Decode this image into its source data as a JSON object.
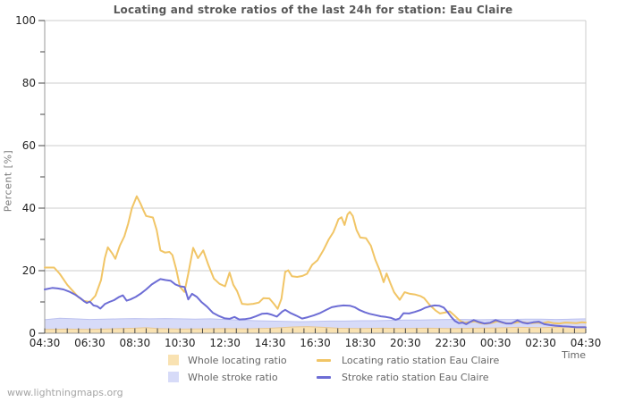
{
  "title": "Locating and stroke ratios of the last 24h for station: Eau Claire",
  "watermark": "www.lightningmaps.org",
  "axes": {
    "y_label": "Percent  [%]",
    "x_label": "Time"
  },
  "colors": {
    "grid": "#cccccc",
    "axis": "#999999",
    "tick": "#444444",
    "tick_label": "#222222",
    "title": "#595959"
  },
  "legend": [
    {
      "label": "Whole locating ratio",
      "type": "area",
      "swatch": "#F9E2B2"
    },
    {
      "label": "Locating ratio station Eau Claire",
      "type": "line",
      "swatch": "#F1C566"
    },
    {
      "label": "Whole stroke ratio",
      "type": "area",
      "swatch": "#D7DBF8"
    },
    {
      "label": "Stroke ratio station Eau Claire",
      "type": "line",
      "swatch": "#6D6DD5"
    }
  ],
  "chart_data": {
    "type": "line",
    "title": "Locating and stroke ratios of the last 24h for station: Eau Claire",
    "xlabel": "Time",
    "ylabel": "Percent [%]",
    "ylim": [
      0,
      100
    ],
    "grid": "horizontal-major",
    "legend_position": "bottom-center",
    "x_unit": "minutes after 04:30, 24h span",
    "x_range_minutes": [
      0,
      1440
    ],
    "x_tick_step_minutes": 120,
    "x_minor_tick_step_minutes": 30,
    "x_tick_labels": [
      "04:30",
      "06:30",
      "08:30",
      "10:30",
      "12:30",
      "14:30",
      "16:30",
      "18:30",
      "20:30",
      "22:30",
      "00:30",
      "02:30",
      "04:30"
    ],
    "y_major_ticks": [
      0,
      20,
      40,
      60,
      80,
      100
    ],
    "y_minor_ticks": [
      10,
      30,
      50,
      70,
      90
    ],
    "series": [
      {
        "id": "whole-stroke-ratio",
        "name": "Whole stroke ratio",
        "type": "area",
        "fill": "#D7DBF8",
        "edge": "#BCC1EF",
        "points": [
          [
            0,
            4.3
          ],
          [
            40,
            4.8
          ],
          [
            80,
            4.6
          ],
          [
            120,
            4.4
          ],
          [
            160,
            4.5
          ],
          [
            200,
            4.6
          ],
          [
            240,
            4.7
          ],
          [
            280,
            4.6
          ],
          [
            320,
            4.7
          ],
          [
            360,
            4.6
          ],
          [
            400,
            4.5
          ],
          [
            440,
            4.6
          ],
          [
            480,
            4.4
          ],
          [
            520,
            4.2
          ],
          [
            560,
            4.0
          ],
          [
            600,
            3.9
          ],
          [
            640,
            3.8
          ],
          [
            680,
            3.7
          ],
          [
            720,
            3.8
          ],
          [
            760,
            3.9
          ],
          [
            800,
            3.9
          ],
          [
            840,
            4.0
          ],
          [
            880,
            4.0
          ],
          [
            920,
            4.1
          ],
          [
            960,
            4.2
          ],
          [
            1000,
            4.2
          ],
          [
            1040,
            4.3
          ],
          [
            1080,
            4.4
          ],
          [
            1120,
            4.4
          ],
          [
            1160,
            4.3
          ],
          [
            1200,
            4.4
          ],
          [
            1240,
            4.4
          ],
          [
            1280,
            4.5
          ],
          [
            1320,
            4.5
          ],
          [
            1360,
            4.4
          ],
          [
            1400,
            4.5
          ],
          [
            1440,
            4.6
          ]
        ]
      },
      {
        "id": "whole-locating-ratio",
        "name": "Whole locating ratio",
        "type": "area",
        "fill": "#F9E2B2",
        "edge": "#E6C795",
        "points": [
          [
            0,
            1.2
          ],
          [
            60,
            1.3
          ],
          [
            120,
            1.2
          ],
          [
            180,
            1.4
          ],
          [
            240,
            1.6
          ],
          [
            270,
            1.8
          ],
          [
            300,
            1.5
          ],
          [
            360,
            1.3
          ],
          [
            420,
            1.4
          ],
          [
            480,
            1.5
          ],
          [
            540,
            1.4
          ],
          [
            600,
            1.6
          ],
          [
            630,
            1.8
          ],
          [
            660,
            2.0
          ],
          [
            700,
            2.1
          ],
          [
            740,
            1.9
          ],
          [
            780,
            1.6
          ],
          [
            840,
            1.5
          ],
          [
            900,
            1.6
          ],
          [
            960,
            1.5
          ],
          [
            1020,
            1.6
          ],
          [
            1080,
            1.5
          ],
          [
            1140,
            1.6
          ],
          [
            1200,
            1.7
          ],
          [
            1260,
            1.9
          ],
          [
            1320,
            1.8
          ],
          [
            1380,
            2.0
          ],
          [
            1440,
            2.1
          ]
        ]
      },
      {
        "id": "locating-ratio-station",
        "name": "Locating ratio station Eau Claire",
        "type": "line",
        "color": "#F1C566",
        "points": [
          [
            0,
            21
          ],
          [
            25,
            21
          ],
          [
            40,
            19
          ],
          [
            60,
            15.5
          ],
          [
            75,
            13.5
          ],
          [
            90,
            11.5
          ],
          [
            105,
            10.3
          ],
          [
            120,
            10
          ],
          [
            135,
            12
          ],
          [
            150,
            17
          ],
          [
            160,
            24
          ],
          [
            168,
            27.5
          ],
          [
            180,
            25.5
          ],
          [
            188,
            23.8
          ],
          [
            200,
            28
          ],
          [
            212,
            31
          ],
          [
            222,
            35
          ],
          [
            232,
            40
          ],
          [
            245,
            43.8
          ],
          [
            255,
            41.5
          ],
          [
            262,
            39.5
          ],
          [
            270,
            37.5
          ],
          [
            288,
            37
          ],
          [
            298,
            33
          ],
          [
            308,
            26.5
          ],
          [
            320,
            25.8
          ],
          [
            332,
            26
          ],
          [
            340,
            25
          ],
          [
            350,
            20.5
          ],
          [
            360,
            14.8
          ],
          [
            372,
            13.2
          ],
          [
            382,
            19
          ],
          [
            395,
            27.3
          ],
          [
            408,
            24
          ],
          [
            422,
            26.5
          ],
          [
            435,
            22
          ],
          [
            450,
            17.5
          ],
          [
            465,
            15.8
          ],
          [
            480,
            15
          ],
          [
            492,
            19.4
          ],
          [
            502,
            15.5
          ],
          [
            512,
            13.5
          ],
          [
            525,
            9.4
          ],
          [
            540,
            9.2
          ],
          [
            555,
            9.4
          ],
          [
            570,
            9.8
          ],
          [
            582,
            11.2
          ],
          [
            598,
            11.1
          ],
          [
            610,
            9.4
          ],
          [
            620,
            7.8
          ],
          [
            630,
            11
          ],
          [
            640,
            19.6
          ],
          [
            648,
            20.1
          ],
          [
            658,
            18.2
          ],
          [
            672,
            18
          ],
          [
            686,
            18.3
          ],
          [
            698,
            19
          ],
          [
            712,
            21.9
          ],
          [
            726,
            23.3
          ],
          [
            742,
            26.6
          ],
          [
            756,
            30
          ],
          [
            768,
            32.3
          ],
          [
            775,
            34.3
          ],
          [
            782,
            36.5
          ],
          [
            790,
            37.1
          ],
          [
            798,
            34.6
          ],
          [
            806,
            38
          ],
          [
            812,
            38.8
          ],
          [
            820,
            37.5
          ],
          [
            830,
            33
          ],
          [
            840,
            30.6
          ],
          [
            855,
            30.4
          ],
          [
            868,
            28
          ],
          [
            880,
            23.5
          ],
          [
            892,
            20
          ],
          [
            902,
            16.3
          ],
          [
            910,
            19.1
          ],
          [
            920,
            16
          ],
          [
            930,
            13.1
          ],
          [
            945,
            10.7
          ],
          [
            958,
            13.1
          ],
          [
            972,
            12.6
          ],
          [
            985,
            12.4
          ],
          [
            1000,
            11.9
          ],
          [
            1010,
            11.2
          ],
          [
            1025,
            9
          ],
          [
            1040,
            7.3
          ],
          [
            1052,
            6.3
          ],
          [
            1065,
            6.6
          ],
          [
            1078,
            7
          ],
          [
            1092,
            5.5
          ],
          [
            1105,
            4
          ],
          [
            1118,
            3.3
          ],
          [
            1132,
            3.6
          ],
          [
            1145,
            3.8
          ],
          [
            1160,
            3.2
          ],
          [
            1175,
            3.0
          ],
          [
            1190,
            3.3
          ],
          [
            1205,
            3.8
          ],
          [
            1220,
            3.3
          ],
          [
            1235,
            3.1
          ],
          [
            1250,
            3.3
          ],
          [
            1265,
            3.7
          ],
          [
            1280,
            3.3
          ],
          [
            1295,
            3.2
          ],
          [
            1310,
            3.4
          ],
          [
            1325,
            3.2
          ],
          [
            1340,
            3.6
          ],
          [
            1355,
            3.2
          ],
          [
            1370,
            3.1
          ],
          [
            1385,
            3.4
          ],
          [
            1400,
            3.3
          ],
          [
            1415,
            3.2
          ],
          [
            1430,
            3.5
          ],
          [
            1440,
            3.4
          ]
        ]
      },
      {
        "id": "stroke-ratio-station",
        "name": "Stroke ratio station Eau Claire",
        "type": "line",
        "color": "#6D6DD5",
        "points": [
          [
            0,
            14
          ],
          [
            20,
            14.5
          ],
          [
            35,
            14.3
          ],
          [
            50,
            14
          ],
          [
            65,
            13.3
          ],
          [
            80,
            12.4
          ],
          [
            95,
            11.2
          ],
          [
            105,
            10.2
          ],
          [
            112,
            9.7
          ],
          [
            120,
            10.1
          ],
          [
            130,
            8.9
          ],
          [
            140,
            8.6
          ],
          [
            148,
            7.9
          ],
          [
            160,
            9.3
          ],
          [
            172,
            10
          ],
          [
            185,
            10.6
          ],
          [
            198,
            11.6
          ],
          [
            208,
            12.1
          ],
          [
            218,
            10.4
          ],
          [
            228,
            10.8
          ],
          [
            242,
            11.6
          ],
          [
            255,
            12.6
          ],
          [
            270,
            14
          ],
          [
            285,
            15.6
          ],
          [
            298,
            16.6
          ],
          [
            308,
            17.3
          ],
          [
            322,
            17
          ],
          [
            335,
            16.8
          ],
          [
            348,
            15.6
          ],
          [
            360,
            15
          ],
          [
            372,
            14.8
          ],
          [
            382,
            10.8
          ],
          [
            392,
            12.6
          ],
          [
            405,
            11.6
          ],
          [
            418,
            9.9
          ],
          [
            432,
            8.5
          ],
          [
            448,
            6.5
          ],
          [
            462,
            5.6
          ],
          [
            478,
            4.8
          ],
          [
            492,
            4.6
          ],
          [
            505,
            5.2
          ],
          [
            518,
            4.4
          ],
          [
            532,
            4.5
          ],
          [
            548,
            4.8
          ],
          [
            562,
            5.4
          ],
          [
            578,
            6.2
          ],
          [
            592,
            6.3
          ],
          [
            605,
            5.9
          ],
          [
            618,
            5.3
          ],
          [
            632,
            6.9
          ],
          [
            640,
            7.5
          ],
          [
            655,
            6.4
          ],
          [
            670,
            5.6
          ],
          [
            685,
            4.7
          ],
          [
            700,
            5.1
          ],
          [
            716,
            5.7
          ],
          [
            732,
            6.4
          ],
          [
            748,
            7.4
          ],
          [
            764,
            8.3
          ],
          [
            780,
            8.7
          ],
          [
            795,
            8.9
          ],
          [
            812,
            8.8
          ],
          [
            825,
            8.3
          ],
          [
            838,
            7.4
          ],
          [
            852,
            6.7
          ],
          [
            865,
            6.2
          ],
          [
            880,
            5.8
          ],
          [
            895,
            5.4
          ],
          [
            908,
            5.2
          ],
          [
            922,
            4.9
          ],
          [
            934,
            4.3
          ],
          [
            944,
            4.7
          ],
          [
            955,
            6.4
          ],
          [
            970,
            6.3
          ],
          [
            985,
            6.8
          ],
          [
            1000,
            7.4
          ],
          [
            1012,
            8.1
          ],
          [
            1025,
            8.6
          ],
          [
            1038,
            8.9
          ],
          [
            1050,
            8.8
          ],
          [
            1062,
            8.2
          ],
          [
            1072,
            6.8
          ],
          [
            1082,
            5.2
          ],
          [
            1092,
            3.9
          ],
          [
            1102,
            3.2
          ],
          [
            1112,
            3.4
          ],
          [
            1122,
            2.9
          ],
          [
            1132,
            3.6
          ],
          [
            1142,
            4.2
          ],
          [
            1155,
            3.6
          ],
          [
            1170,
            3.1
          ],
          [
            1185,
            3.3
          ],
          [
            1200,
            4.2
          ],
          [
            1215,
            3.6
          ],
          [
            1228,
            3.1
          ],
          [
            1242,
            3.1
          ],
          [
            1258,
            4.1
          ],
          [
            1272,
            3.4
          ],
          [
            1285,
            3.1
          ],
          [
            1300,
            3.5
          ],
          [
            1315,
            3.7
          ],
          [
            1330,
            2.9
          ],
          [
            1345,
            2.6
          ],
          [
            1360,
            2.4
          ],
          [
            1378,
            2.2
          ],
          [
            1395,
            2.1
          ],
          [
            1415,
            1.9
          ],
          [
            1440,
            1.9
          ]
        ]
      }
    ]
  }
}
